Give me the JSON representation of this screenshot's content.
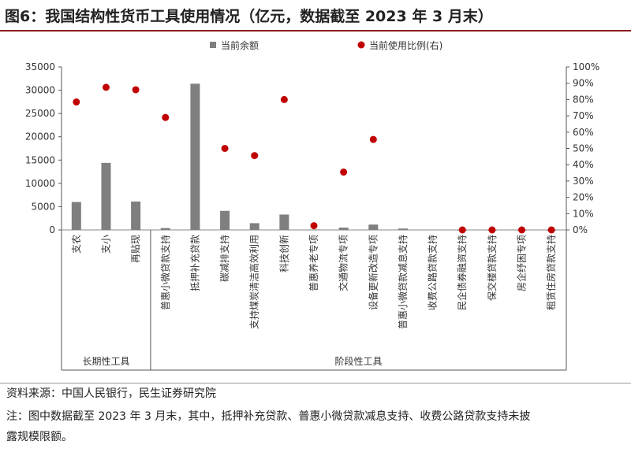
{
  "title": "图6：我国结构性货币工具使用情况（亿元，数据截至 2023 年 3 月末）",
  "chart_data": {
    "type": "bar+scatter",
    "categories": [
      "支农",
      "支小",
      "再贴现",
      "普惠小微贷款支持",
      "抵押补充贷款",
      "碳减排支持",
      "支持煤炭清洁高效利用",
      "科技创新",
      "普惠养老专项",
      "交通物流专项",
      "设备更新改造专项",
      "普惠小微贷款减息支持",
      "收费公路贷款支持",
      "民企债券融资支持",
      "保交楼贷款支持",
      "房企纾困专项",
      "租赁住房贷款支持"
    ],
    "series": [
      {
        "name": "当前余额",
        "type": "bar",
        "axis": "left",
        "color": "#7f7f7f",
        "values": [
          6000,
          14400,
          6100,
          400,
          31400,
          4100,
          1450,
          3300,
          100,
          500,
          1150,
          300,
          null,
          0,
          0,
          0,
          0
        ]
      },
      {
        "name": "当前使用比例(右)",
        "type": "scatter",
        "axis": "right",
        "color": "#c00000",
        "values": [
          78.5,
          87.5,
          86,
          69,
          null,
          50,
          45.6,
          80,
          2.6,
          35.5,
          55.5,
          null,
          null,
          0,
          0,
          0,
          0
        ]
      }
    ],
    "left_axis": {
      "range": [
        0,
        35000
      ],
      "ticks": [
        "0",
        "5000",
        "10000",
        "15000",
        "20000",
        "25000",
        "30000",
        "35000"
      ]
    },
    "right_axis": {
      "range": [
        0,
        100
      ],
      "ticks": [
        "0%",
        "10%",
        "20%",
        "30%",
        "40%",
        "50%",
        "60%",
        "70%",
        "80%",
        "90%",
        "100%"
      ]
    },
    "groups": [
      {
        "label": "长期性工具",
        "count": 3
      },
      {
        "label": "阶段性工具",
        "count": 14
      }
    ],
    "legend": "top",
    "grid": false
  },
  "footer": {
    "source": "资料来源：中国人民银行，民生证券研究院",
    "note1": "注：图中数据截至 2023 年 3 月末，其中，抵押补充贷款、普惠小微贷款减息支持、收费公路贷款支持未披",
    "note2": "露规模限额。"
  }
}
